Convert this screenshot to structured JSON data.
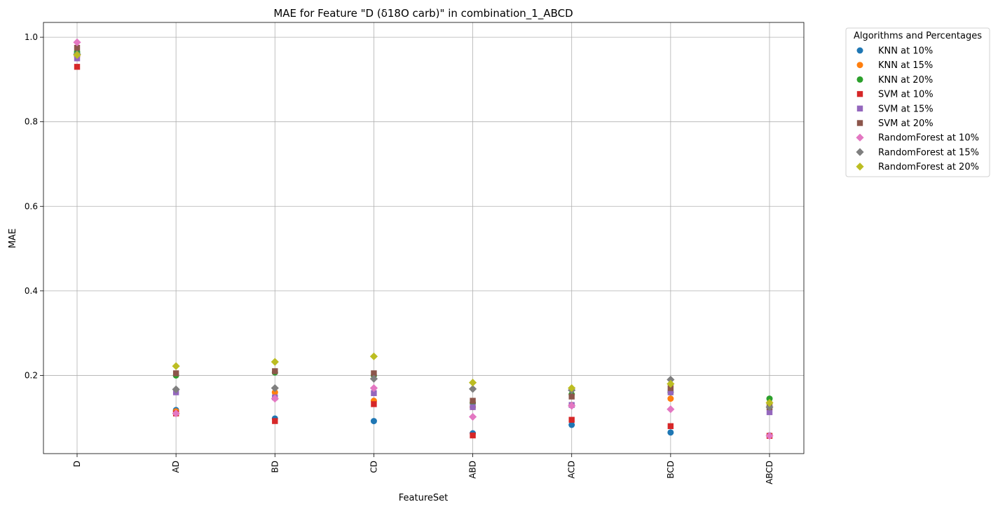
{
  "chart_data": {
    "type": "scatter",
    "title": "MAE for Feature \"D (δ18O carb)\" in combination_1_ABCD",
    "xlabel": "FeatureSet",
    "ylabel": "MAE",
    "categories": [
      "D",
      "AD",
      "BD",
      "CD",
      "ABD",
      "ACD",
      "BCD",
      "ABCD"
    ],
    "ylim": [
      0.015,
      1.035
    ],
    "yticks": [
      0.2,
      0.4,
      0.6,
      0.8,
      1.0
    ],
    "ytick_labels": [
      "0.2",
      "0.4",
      "0.6",
      "0.8",
      "1.0"
    ],
    "grid": true,
    "legend": {
      "title": "Algorithms and Percentages",
      "placement": "outside-top-right"
    },
    "series": [
      {
        "name": "KNN at 10%",
        "marker": "circle",
        "color": "#1f77b4",
        "values": [
          0.96,
          0.118,
          0.098,
          0.092,
          0.063,
          0.083,
          0.065,
          0.058
        ]
      },
      {
        "name": "KNN at 15%",
        "marker": "circle",
        "color": "#ff7f0e",
        "values": [
          0.955,
          0.115,
          0.16,
          0.14,
          0.125,
          0.13,
          0.145,
          0.135
        ]
      },
      {
        "name": "KNN at 20%",
        "marker": "circle",
        "color": "#2ca02c",
        "values": [
          0.965,
          0.2,
          0.207,
          0.2,
          0.135,
          0.155,
          0.16,
          0.145
        ]
      },
      {
        "name": "SVM at 10%",
        "marker": "square",
        "color": "#d62728",
        "values": [
          0.93,
          0.11,
          0.092,
          0.132,
          0.058,
          0.095,
          0.08,
          0.057
        ]
      },
      {
        "name": "SVM at 15%",
        "marker": "square",
        "color": "#9467bd",
        "values": [
          0.95,
          0.16,
          0.148,
          0.158,
          0.125,
          0.13,
          0.16,
          0.113
        ]
      },
      {
        "name": "SVM at 20%",
        "marker": "square",
        "color": "#8c564b",
        "values": [
          0.975,
          0.205,
          0.21,
          0.205,
          0.14,
          0.15,
          0.17,
          0.125
        ]
      },
      {
        "name": "RandomForest at 10%",
        "marker": "diamond",
        "color": "#e377c2",
        "values": [
          0.988,
          0.11,
          0.145,
          0.17,
          0.102,
          0.128,
          0.12,
          0.057
        ]
      },
      {
        "name": "RandomForest at 15%",
        "marker": "diamond",
        "color": "#7f7f7f",
        "values": [
          0.96,
          0.167,
          0.17,
          0.192,
          0.168,
          0.165,
          0.19,
          0.125
        ]
      },
      {
        "name": "RandomForest at 20%",
        "marker": "diamond",
        "color": "#bcbd22",
        "values": [
          0.958,
          0.222,
          0.232,
          0.245,
          0.183,
          0.17,
          0.18,
          0.135
        ]
      }
    ]
  }
}
